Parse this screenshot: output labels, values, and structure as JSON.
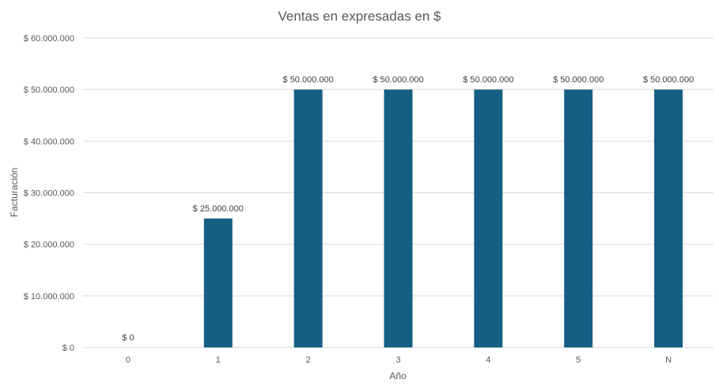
{
  "chart_data": {
    "type": "bar",
    "title": "Ventas en expresadas en $",
    "xlabel": "Año",
    "ylabel": "Facturación",
    "categories": [
      "0",
      "1",
      "2",
      "3",
      "4",
      "5",
      "N"
    ],
    "values": [
      0,
      25000000,
      50000000,
      50000000,
      50000000,
      50000000,
      50000000
    ],
    "data_labels": [
      "$ 0",
      "$ 25.000.000",
      "$ 50.000.000",
      "$ 50.000.000",
      "$ 50.000.000",
      "$ 50.000.000",
      "$ 50.000.000"
    ],
    "ylim": [
      0,
      60000000
    ],
    "yticks": [
      0,
      10000000,
      20000000,
      30000000,
      40000000,
      50000000,
      60000000
    ],
    "ytick_labels": [
      "$ 0",
      "$ 10.000.000",
      "$ 20.000.000",
      "$ 30.000.000",
      "$ 40.000.000",
      "$ 50.000.000",
      "$ 60.000.000"
    ],
    "grid": true,
    "legend": "none",
    "colors": {
      "bar": "#155F83",
      "grid": "#D9D9D9",
      "text": "#595959",
      "label": "#404040"
    }
  }
}
